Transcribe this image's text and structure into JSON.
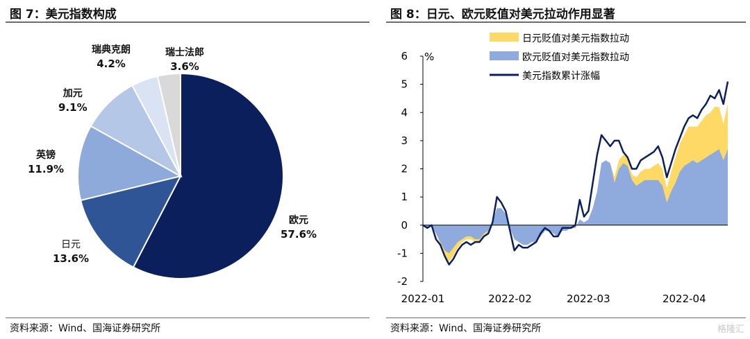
{
  "left": {
    "title": "图 7：美元指数构成",
    "source": "资料来源：Wind、国海证券研究所"
  },
  "right": {
    "title": "图 8：日元、欧元贬值对美元拉动作用显著",
    "source": "资料来源：Wind、国海证券研究所"
  },
  "watermark": "格隆汇",
  "colors": {
    "euro": "#0b1f5c",
    "yen": "#2f5597",
    "pound": "#8eaadb",
    "cad": "#b4c7e7",
    "sek": "#dae3f3",
    "chf": "#d9d9d9",
    "yen_area": "#ffd966",
    "euro_area": "#8faadc",
    "index_line": "#0b1f5c"
  },
  "chart_data": [
    {
      "type": "pie",
      "slices": [
        {
          "name": "欧元",
          "value": 57.6,
          "label": "57.6%"
        },
        {
          "name": "日元",
          "value": 13.6,
          "label": "13.6%"
        },
        {
          "name": "英镑",
          "value": 11.9,
          "label": "11.9%"
        },
        {
          "name": "加元",
          "value": 9.1,
          "label": "9.1%"
        },
        {
          "name": "瑞典克朗",
          "value": 4.2,
          "label": "4.2%"
        },
        {
          "name": "瑞士法郎",
          "value": 3.6,
          "label": "3.6%"
        }
      ]
    },
    {
      "type": "area",
      "ylabel": "%",
      "ylim": [
        -2,
        6
      ],
      "yticks": [
        "-2",
        "-1",
        "0",
        "1",
        "2",
        "3",
        "4",
        "5",
        "6"
      ],
      "xticks": [
        "2022-01",
        "2022-02",
        "2022-03",
        "2022-04"
      ],
      "legend": [
        "日元贬值对美元指数拉动",
        "欧元贬值对美元指数拉动",
        "美元指数累计涨幅"
      ],
      "legend_position": "top",
      "series": [
        {
          "name": "欧元贬值对美元指数拉动",
          "values": [
            0,
            -0.1,
            0,
            -0.3,
            -0.6,
            -0.9,
            -1.0,
            -0.8,
            -0.6,
            -0.5,
            -0.4,
            -0.4,
            -0.5,
            -0.5,
            -0.3,
            -0.2,
            0.1,
            0.6,
            0.6,
            0.4,
            -0.1,
            -0.5,
            -0.6,
            -0.7,
            -0.7,
            -0.6,
            -0.6,
            -0.4,
            -0.2,
            -0.2,
            -0.3,
            -0.4,
            -0.2,
            -0.2,
            -0.1,
            -0.1,
            0.2,
            0.1,
            0.2,
            0.6,
            1.2,
            2.2,
            2.3,
            2.2,
            1.5,
            2.0,
            2.2,
            2.1,
            1.6,
            1.4,
            1.5,
            1.6,
            1.6,
            1.6,
            1.6,
            1.4,
            0.8,
            1.2,
            1.5,
            1.9,
            2.1,
            2.2,
            2.3,
            2.2,
            2.3,
            2.4,
            2.5,
            2.6,
            2.7,
            2.3,
            2.7
          ]
        },
        {
          "name": "日元贬值对美元指数拉动",
          "values": [
            0,
            0,
            0,
            0,
            -0.1,
            -0.2,
            -0.3,
            -0.3,
            -0.2,
            -0.1,
            -0.1,
            -0.1,
            -0.1,
            -0.1,
            -0.1,
            -0.1,
            0,
            0,
            0,
            0,
            0,
            0,
            0,
            0,
            0,
            0,
            0,
            0,
            0,
            0,
            0,
            0,
            0,
            0,
            0,
            0,
            0,
            0,
            0,
            0,
            0,
            0,
            0,
            0,
            0.2,
            0.3,
            0.3,
            0.3,
            0.2,
            0.3,
            0.4,
            0.4,
            0.4,
            0.5,
            0.6,
            0.6,
            0.5,
            0.7,
            0.9,
            1.0,
            1.1,
            1.3,
            1.2,
            1.3,
            1.4,
            1.5,
            1.5,
            1.6,
            1.5,
            1.3,
            1.6
          ]
        },
        {
          "name": "美元指数累计涨幅",
          "values": [
            0,
            -0.1,
            0,
            -0.5,
            -0.7,
            -1.1,
            -1.4,
            -1.2,
            -0.9,
            -0.7,
            -0.6,
            -0.7,
            -0.6,
            -0.6,
            -0.4,
            -0.3,
            0.1,
            1.0,
            0.8,
            0.5,
            -0.2,
            -0.9,
            -0.7,
            -0.8,
            -0.8,
            -0.7,
            -0.6,
            -0.3,
            -0.1,
            -0.2,
            -0.4,
            -0.4,
            -0.1,
            -0.1,
            -0.1,
            0,
            0.9,
            0.3,
            0.5,
            1.5,
            2.5,
            3.2,
            3.0,
            2.8,
            3.0,
            3.0,
            2.6,
            2.4,
            2.0,
            2.0,
            2.3,
            2.4,
            2.5,
            2.6,
            2.8,
            2.4,
            1.7,
            2.2,
            2.7,
            3.1,
            3.5,
            3.8,
            3.9,
            3.8,
            4.1,
            4.3,
            4.6,
            4.5,
            4.8,
            4.3,
            5.1
          ]
        }
      ]
    }
  ]
}
